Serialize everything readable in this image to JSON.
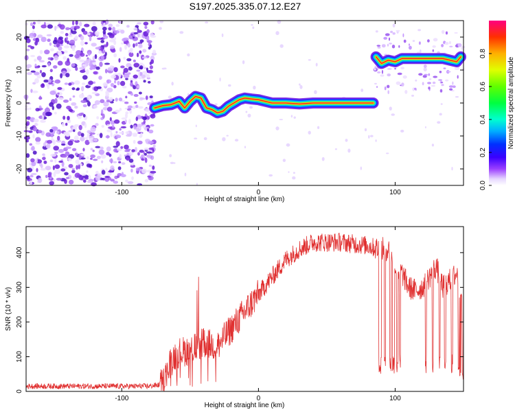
{
  "title": "S197.2025.335.07.12.E27",
  "chart_data": [
    {
      "type": "heatmap",
      "name": "spectrogram",
      "xlabel": "Height of straight line (km)",
      "ylabel": "Frequency (Hz)",
      "xlim": [
        -170,
        150
      ],
      "ylim": [
        -25,
        25
      ],
      "xticks": [
        -100,
        0,
        100
      ],
      "yticks": [
        -20,
        -10,
        0,
        10,
        20
      ],
      "noise_region_x": [
        -170,
        -76
      ],
      "trace": [
        [
          -76,
          -1.5
        ],
        [
          -70,
          -0.8
        ],
        [
          -64,
          -0.5
        ],
        [
          -58,
          0.5
        ],
        [
          -54,
          -1.5
        ],
        [
          -50,
          0.5
        ],
        [
          -46,
          2.0
        ],
        [
          -42,
          1.5
        ],
        [
          -38,
          -1.5
        ],
        [
          -34,
          -2.0
        ],
        [
          -30,
          -3.0
        ],
        [
          -26,
          -2.5
        ],
        [
          -22,
          -1.0
        ],
        [
          -18,
          0.0
        ],
        [
          -14,
          1.0
        ],
        [
          -10,
          1.5
        ],
        [
          -5,
          1.2
        ],
        [
          0,
          1.0
        ],
        [
          5,
          0.5
        ],
        [
          10,
          0.0
        ],
        [
          20,
          0.0
        ],
        [
          30,
          -0.3
        ],
        [
          40,
          0.0
        ],
        [
          60,
          0.0
        ],
        [
          80,
          0.0
        ],
        [
          84,
          0.0
        ]
      ],
      "upper_trace": [
        [
          86,
          14
        ],
        [
          90,
          12
        ],
        [
          95,
          13
        ],
        [
          100,
          12.5
        ],
        [
          105,
          13.5
        ],
        [
          115,
          13.5
        ],
        [
          125,
          13.5
        ],
        [
          135,
          13.5
        ],
        [
          145,
          12.5
        ],
        [
          148,
          14
        ]
      ],
      "colorbar": {
        "label": "Normalized spectral amplitude",
        "ticks": [
          "0.0",
          "0.2",
          "0.4",
          "0.6",
          "0.8"
        ],
        "range": [
          0,
          1
        ]
      }
    },
    {
      "type": "line",
      "name": "snr",
      "xlabel": "Height of straight line (km)",
      "ylabel": "SNR (10 * v/v)",
      "xlim": [
        -170,
        150
      ],
      "ylim": [
        0,
        475
      ],
      "xticks": [
        -100,
        0,
        100
      ],
      "yticks": [
        0,
        100,
        200,
        300,
        400
      ],
      "color": "#e03030",
      "envelope": [
        [
          -170,
          15
        ],
        [
          -80,
          15
        ],
        [
          -70,
          20
        ],
        [
          -65,
          80
        ],
        [
          -60,
          110
        ],
        [
          -50,
          120
        ],
        [
          -40,
          140
        ],
        [
          -30,
          130
        ],
        [
          -20,
          180
        ],
        [
          -10,
          230
        ],
        [
          0,
          280
        ],
        [
          10,
          330
        ],
        [
          20,
          380
        ],
        [
          30,
          410
        ],
        [
          40,
          430
        ],
        [
          60,
          430
        ],
        [
          80,
          420
        ],
        [
          88,
          410
        ],
        [
          95,
          410
        ],
        [
          100,
          360
        ],
        [
          105,
          340
        ],
        [
          110,
          300
        ],
        [
          115,
          290
        ],
        [
          120,
          300
        ],
        [
          125,
          330
        ],
        [
          130,
          360
        ],
        [
          135,
          300
        ],
        [
          140,
          320
        ],
        [
          145,
          340
        ],
        [
          150,
          300
        ]
      ]
    }
  ]
}
